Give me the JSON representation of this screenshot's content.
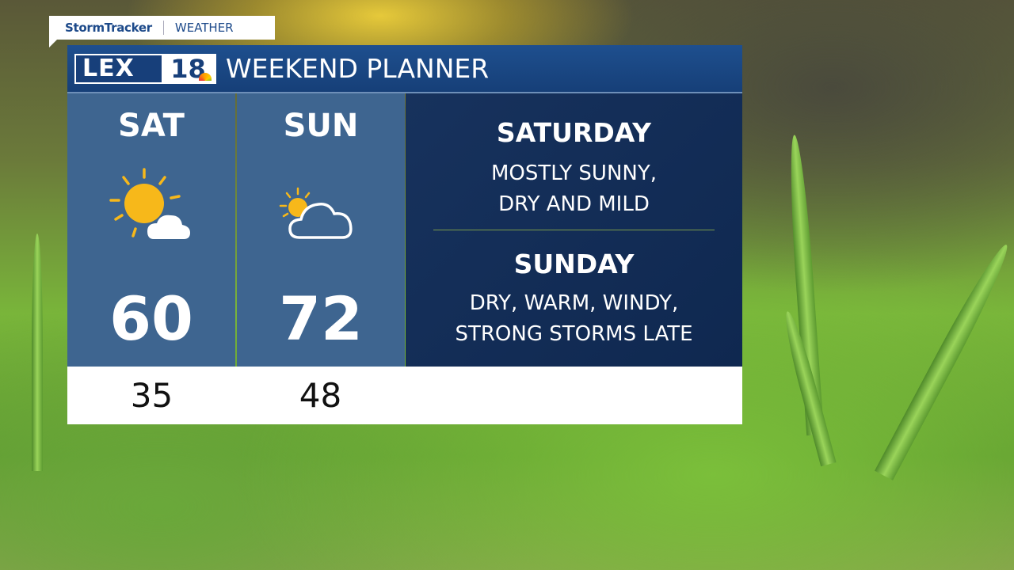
{
  "tag": {
    "brand": "StormTracker",
    "section": "WEATHER"
  },
  "header": {
    "logo_text": "LEX",
    "logo_number": "18",
    "title": "WEEKEND PLANNER"
  },
  "days": [
    {
      "name": "SAT",
      "icon": "mostly-sunny-icon",
      "high": "60",
      "low": "35"
    },
    {
      "name": "SUN",
      "icon": "partly-cloudy-icon",
      "high": "72",
      "low": "48"
    }
  ],
  "summary": [
    {
      "day": "SATURDAY",
      "line1": "MOSTLY SUNNY,",
      "line2": "DRY AND MILD"
    },
    {
      "day": "SUNDAY",
      "line1": "DRY, WARM, WINDY,",
      "line2": "STRONG STORMS LATE"
    }
  ],
  "colors": {
    "header": "#1e4f8e",
    "day_panel": "#3e6590",
    "summary_panel": "#17325d",
    "sun": "#f7b81a"
  }
}
